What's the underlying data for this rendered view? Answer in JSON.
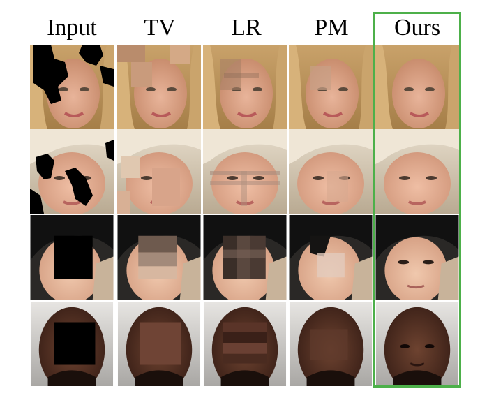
{
  "columns": [
    {
      "label": "Input"
    },
    {
      "label": "TV"
    },
    {
      "label": "LR"
    },
    {
      "label": "PM"
    },
    {
      "label": "Ours"
    }
  ],
  "colors": {
    "highlight_frame": "#4db04a"
  }
}
